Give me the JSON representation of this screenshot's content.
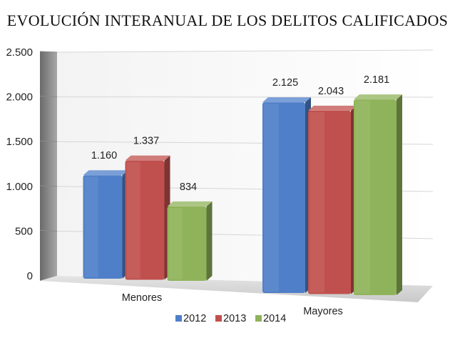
{
  "chart_data": {
    "type": "bar",
    "title": "EVOLUCIÓN INTERANUAL DE LOS DELITOS CALIFICADOS",
    "categories": [
      "Menores",
      "Mayores"
    ],
    "series": [
      {
        "name": "2012",
        "values": [
          1160,
          2125
        ],
        "labels": [
          "1.160",
          "2.125"
        ],
        "color": "#4f7fc9"
      },
      {
        "name": "2013",
        "values": [
          1337,
          2043
        ],
        "labels": [
          "1.337",
          "2.043"
        ],
        "color": "#c0504d"
      },
      {
        "name": "2014",
        "values": [
          834,
          2181
        ],
        "labels": [
          "834",
          "2.181"
        ],
        "color": "#8fb35a"
      }
    ],
    "y_ticks": [
      0,
      500,
      1000,
      1500,
      2000,
      2500
    ],
    "y_tick_labels": [
      "0",
      "500",
      "1.000",
      "1.500",
      "2.000",
      "2.500"
    ],
    "ylim": [
      0,
      2500
    ],
    "xlabel": "",
    "ylabel": "",
    "grid": true,
    "legend": "bottom",
    "style": "3d"
  }
}
